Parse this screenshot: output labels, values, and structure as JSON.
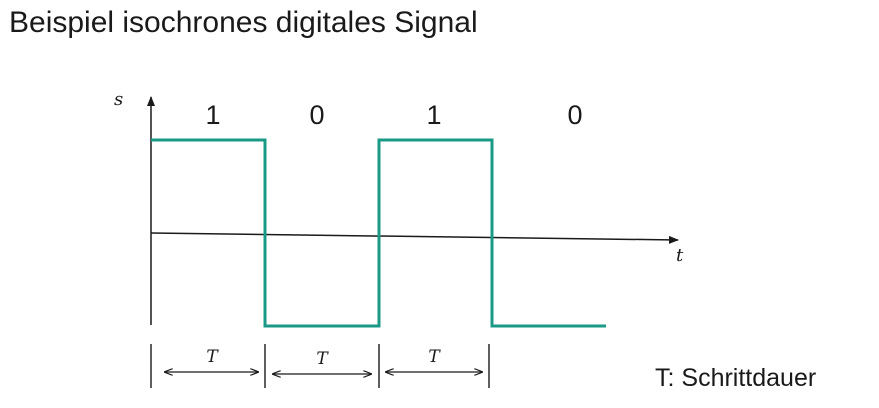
{
  "title": "Beispiel isochrones digitales Signal",
  "legend": "T: Schrittdauer",
  "axes": {
    "y_label": "s",
    "x_label": "t"
  },
  "signal": {
    "bits": [
      "1",
      "0",
      "1",
      "0"
    ],
    "interval_label": "T",
    "interval_count": 3,
    "color": "#1a9987"
  }
}
